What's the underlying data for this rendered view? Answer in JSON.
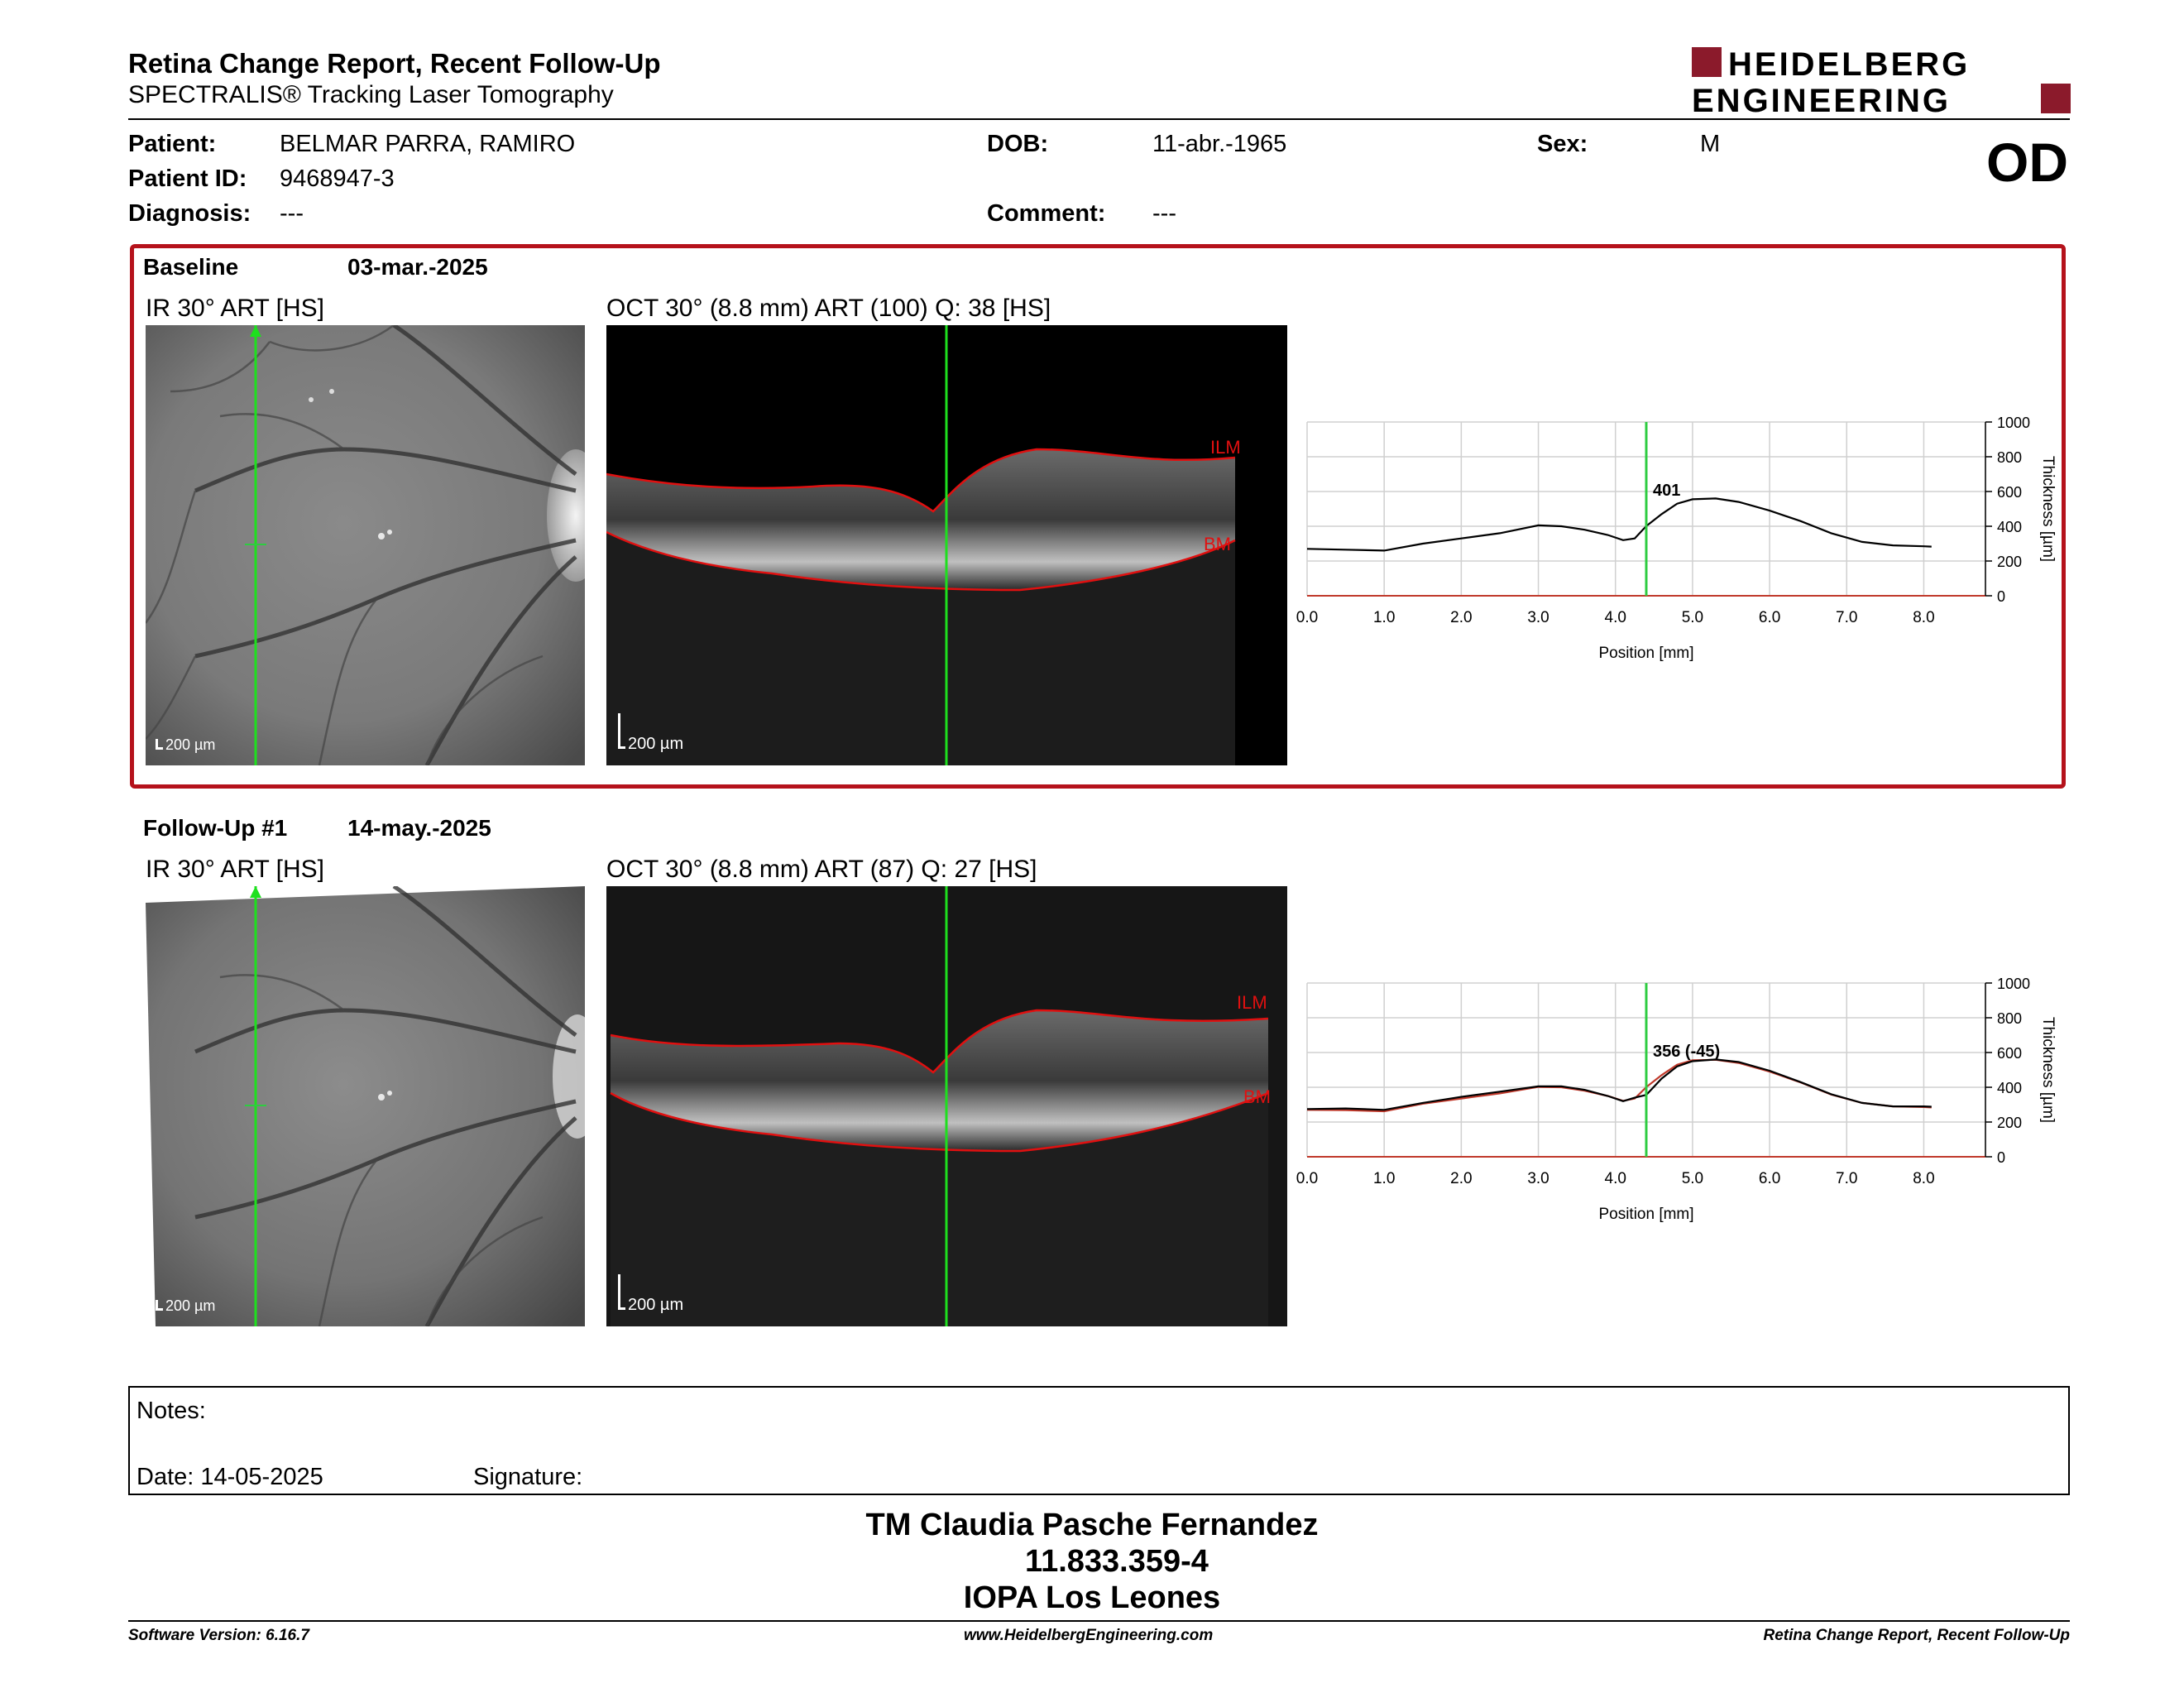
{
  "header": {
    "title": "Retina Change Report, Recent Follow-Up",
    "subtitle": "SPECTRALIS® Tracking Laser Tomography",
    "logo_line1": "HEIDELBERG",
    "logo_line2": "ENGINEERING"
  },
  "patient": {
    "patient_label": "Patient:",
    "patient_value": "BELMAR PARRA, RAMIRO",
    "id_label": "Patient ID:",
    "id_value": "9468947-3",
    "diagnosis_label": "Diagnosis:",
    "diagnosis_value": "---",
    "dob_label": "DOB:",
    "dob_value": "11-abr.-1965",
    "comment_label": "Comment:",
    "comment_value": "---",
    "sex_label": "Sex:",
    "sex_value": "M",
    "eye": "OD"
  },
  "baseline": {
    "label": "Baseline",
    "date": "03-mar.-2025",
    "ir_title": "IR 30° ART [HS]",
    "oct_title": "OCT 30° (8.8 mm) ART (100) Q: 38 [HS]",
    "scale_ir": "200 µm",
    "scale_oct": "200 µm",
    "ilm": "ILM",
    "bm": "BM"
  },
  "followup": {
    "label": "Follow-Up #1",
    "date": "14-may.-2025",
    "ir_title": "IR 30° ART [HS]",
    "oct_title": "OCT 30° (8.8 mm) ART (87) Q: 27 [HS]",
    "scale_ir": "200 µm",
    "scale_oct": "200 µm",
    "ilm": "ILM",
    "bm": "BM"
  },
  "chart_data": [
    {
      "type": "line",
      "xlabel": "Position [mm]",
      "ylabel": "Thickness [µm]",
      "xlim": [
        0,
        8.8
      ],
      "ylim": [
        0,
        1000
      ],
      "xticks": [
        "0.0",
        "1.0",
        "2.0",
        "3.0",
        "4.0",
        "5.0",
        "6.0",
        "7.0",
        "8.0"
      ],
      "yticks": [
        "0",
        "200",
        "400",
        "600",
        "800",
        "1000"
      ],
      "grid": true,
      "marker_x": 4.4,
      "annotation": "401",
      "series": [
        {
          "color": "#000000",
          "x": [
            0,
            0.5,
            1.0,
            1.5,
            2.0,
            2.5,
            3.0,
            3.3,
            3.6,
            3.9,
            4.1,
            4.25,
            4.4,
            4.6,
            4.8,
            5.0,
            5.3,
            5.6,
            6.0,
            6.4,
            6.8,
            7.2,
            7.6,
            8.0,
            8.1
          ],
          "y": [
            270,
            265,
            260,
            300,
            330,
            360,
            405,
            400,
            380,
            350,
            320,
            330,
            401,
            470,
            530,
            555,
            560,
            540,
            490,
            430,
            360,
            310,
            290,
            285,
            283
          ]
        }
      ]
    },
    {
      "type": "line",
      "xlabel": "Position [mm]",
      "ylabel": "Thickness [µm]",
      "xlim": [
        0,
        8.8
      ],
      "ylim": [
        0,
        1000
      ],
      "xticks": [
        "0.0",
        "1.0",
        "2.0",
        "3.0",
        "4.0",
        "5.0",
        "6.0",
        "7.0",
        "8.0"
      ],
      "yticks": [
        "0",
        "200",
        "400",
        "600",
        "800",
        "1000"
      ],
      "grid": true,
      "marker_x": 4.4,
      "annotation": "356 (-45)",
      "series": [
        {
          "color": "#000000",
          "x": [
            0,
            0.5,
            1.0,
            1.5,
            2.0,
            2.5,
            3.0,
            3.3,
            3.6,
            3.9,
            4.1,
            4.25,
            4.4,
            4.6,
            4.8,
            5.0,
            5.3,
            5.6,
            6.0,
            6.4,
            6.8,
            7.2,
            7.6,
            8.0,
            8.1
          ],
          "y": [
            275,
            278,
            270,
            310,
            345,
            375,
            405,
            405,
            385,
            350,
            320,
            340,
            356,
            450,
            520,
            550,
            560,
            545,
            495,
            430,
            360,
            310,
            290,
            290,
            288
          ]
        },
        {
          "color": "#c0392b",
          "x": [
            0,
            0.5,
            1.0,
            1.5,
            2.0,
            2.5,
            3.0,
            3.3,
            3.6,
            3.9,
            4.1,
            4.25,
            4.4,
            4.6,
            4.8,
            5.0,
            5.3,
            5.6,
            6.0,
            6.4,
            6.8,
            7.2,
            7.6,
            8.0,
            8.1
          ],
          "y": [
            270,
            268,
            262,
            305,
            335,
            365,
            402,
            400,
            380,
            350,
            322,
            335,
            401,
            470,
            530,
            555,
            558,
            540,
            490,
            428,
            358,
            310,
            290,
            286,
            284
          ]
        }
      ]
    }
  ],
  "notes": {
    "notes_label": "Notes:",
    "date_label": "Date: 14-05-2025",
    "signature_label": "Signature:"
  },
  "signer": {
    "name": "TM Claudia Pasche Fernandez",
    "id": "11.833.359-4",
    "place": "IOPA Los Leones"
  },
  "footer": {
    "left": "Software Version: 6.16.7",
    "center": "www.HeidelbergEngineering.com",
    "right": "Retina Change Report, Recent Follow-Up"
  },
  "colors": {
    "accent": "#b5121b",
    "marker": "#2ecc40",
    "segment": "#e01010"
  }
}
